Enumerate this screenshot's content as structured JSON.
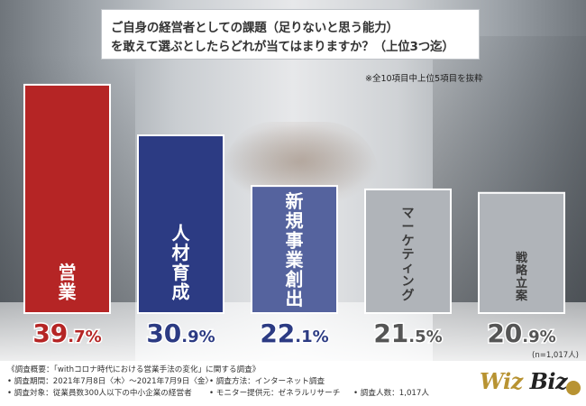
{
  "title": {
    "line1": "ご自身の経営者としての課題（足りないと思う能力）",
    "line2": "を敢えて選ぶとしたらどれが当てはまりますか？（上位3つ迄）"
  },
  "note": "※全10項目中上位5項目を抜粋",
  "sample_size": "(n=1,017人)",
  "chart_data": {
    "type": "bar",
    "categories": [
      "営業",
      "人材育成",
      "新規事業創出",
      "マーケティング",
      "戦略立案"
    ],
    "values": [
      39.7,
      30.9,
      22.1,
      21.5,
      20.9
    ],
    "value_labels": [
      {
        "major": "39",
        "minor": ".7%"
      },
      {
        "major": "30",
        "minor": ".9%"
      },
      {
        "major": "22",
        "minor": ".1%"
      },
      {
        "major": "21",
        "minor": ".5%"
      },
      {
        "major": "20",
        "minor": ".9%"
      }
    ],
    "unit": "%",
    "colors": [
      "#b52525",
      "#2c3b83",
      "#55639e",
      "#b0b4b9",
      "#b0b4b9"
    ],
    "label_colors": [
      "#ffffff",
      "#ffffff",
      "#ffffff",
      "#3a3a3a",
      "#3a3a3a"
    ],
    "value_colors": [
      "#b52525",
      "#2c3b83",
      "#2c3b83",
      "#555555",
      "#555555"
    ],
    "ylim": [
      0,
      40
    ]
  },
  "footer": {
    "lines": [
      "《調査概要：「withコロナ時代における営業手法の変化」に関する調査》",
      "• 調査期間：2021年7月8日〈木〉〜2021年7月9日〈金〉",
      "• 調査方法：インターネット調査",
      "• 調査対象：従業員数300人以下の中小企業の経営者",
      "• モニター提供元：ゼネラルリサーチ",
      "• 調査人数：1,017人"
    ]
  },
  "logo": {
    "part1": "Wiz",
    "part2": "Biz"
  }
}
